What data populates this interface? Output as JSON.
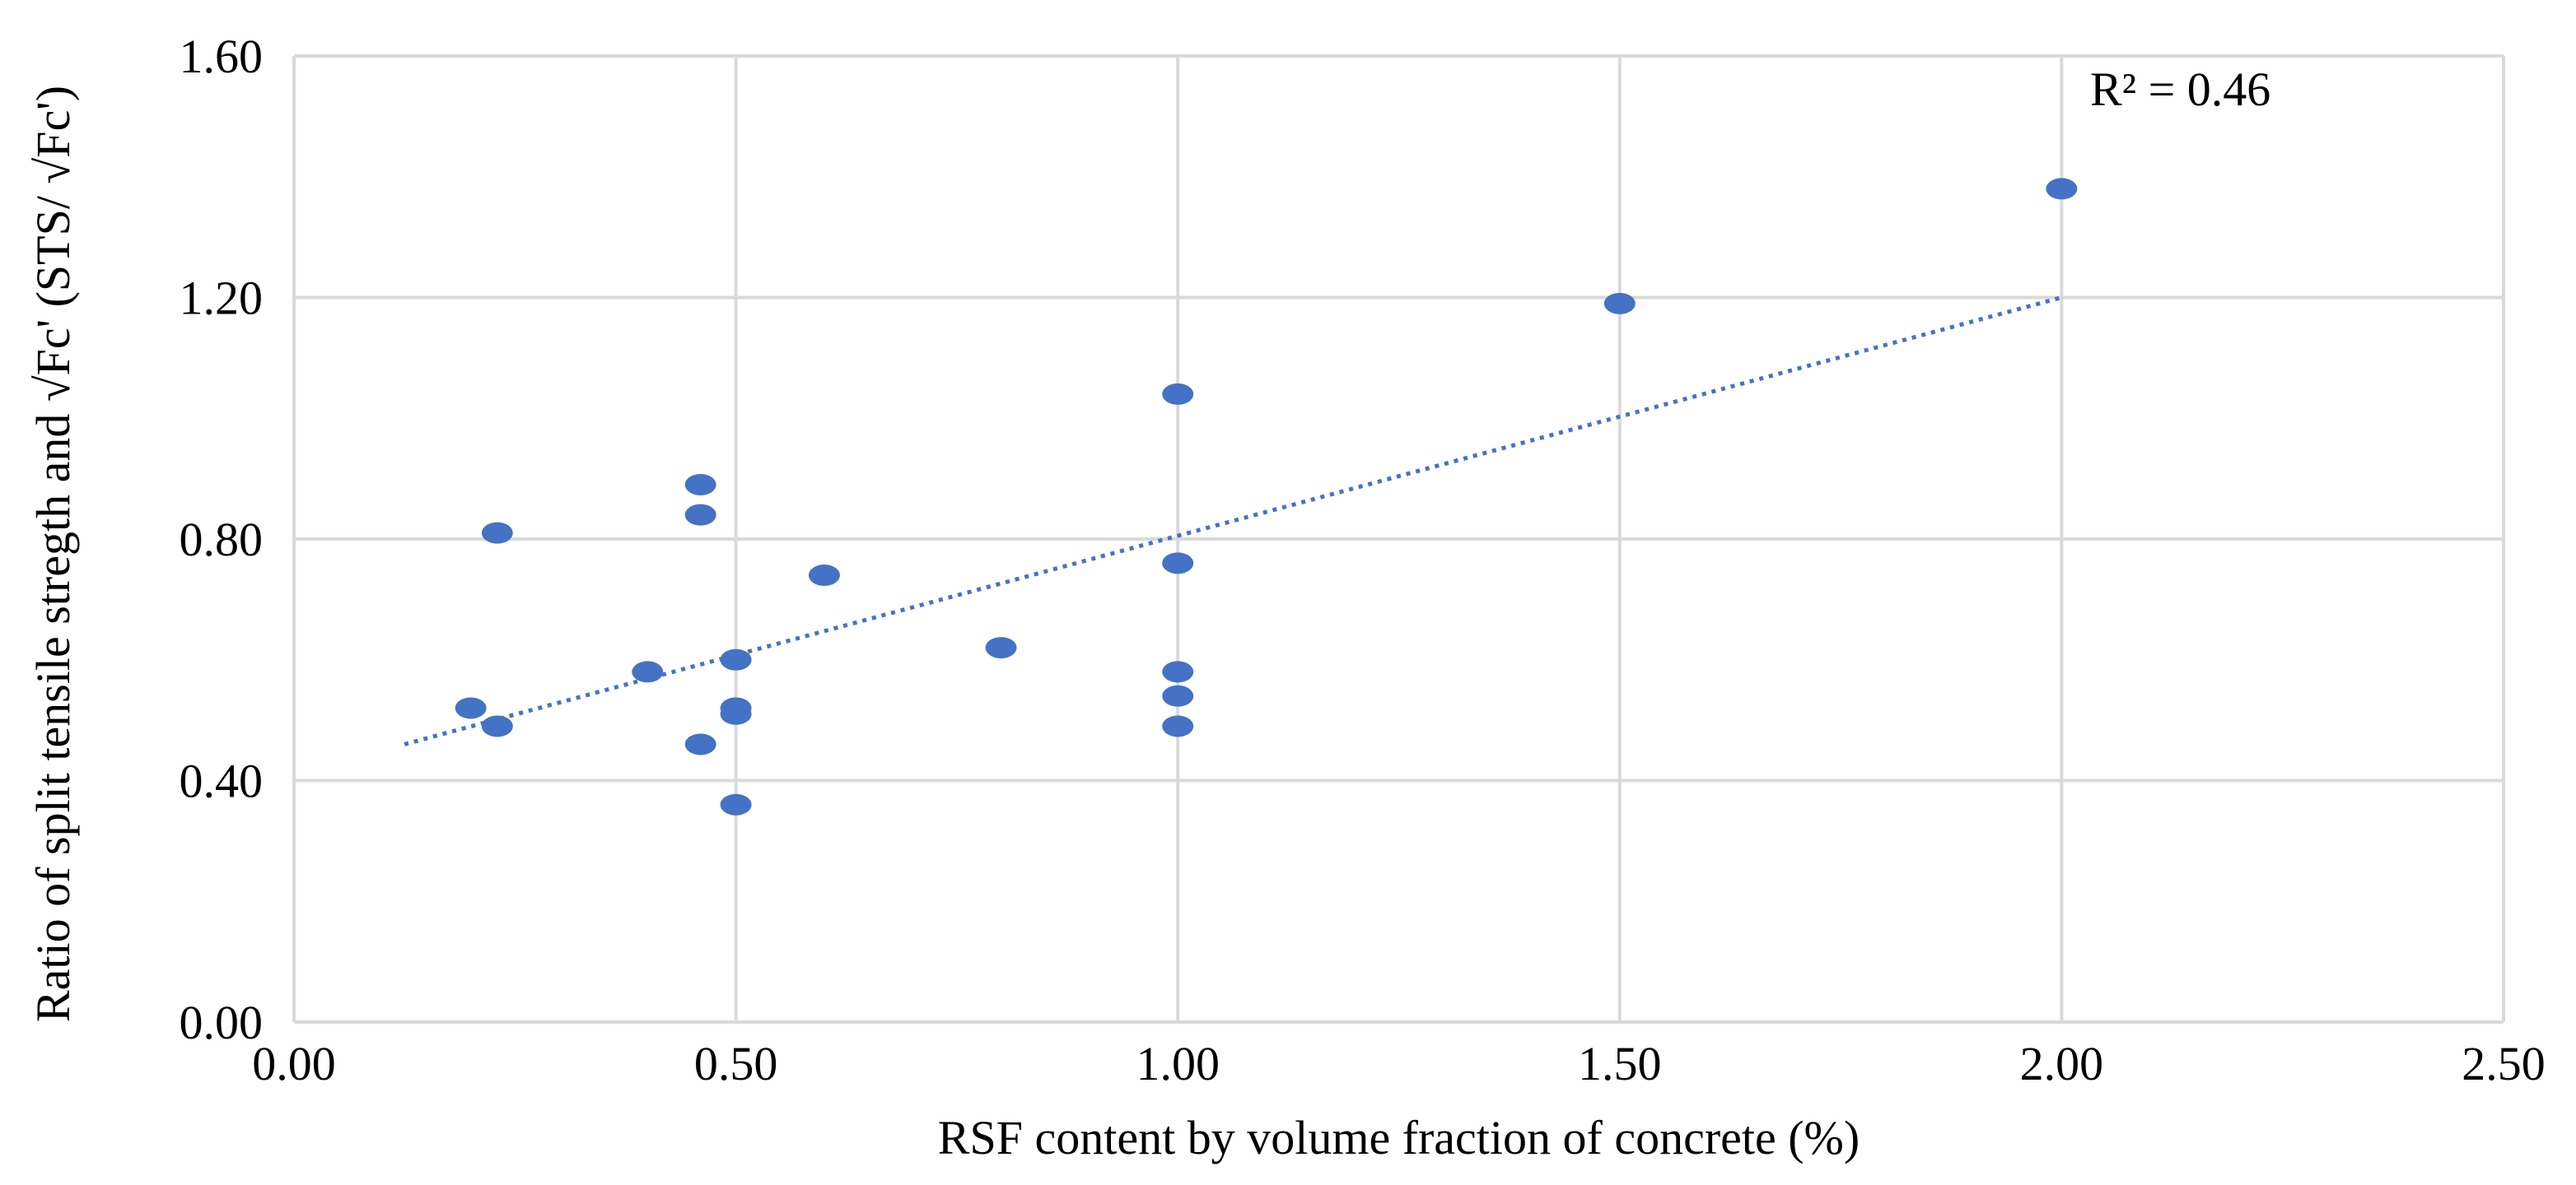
{
  "chart_data": {
    "type": "scatter",
    "xlabel": "RSF content by volume fraction of concrete (%)",
    "ylabel": "Ratio of split tensile stregth and √Fc' (STS/ √Fc')",
    "xlim": [
      0.0,
      2.5
    ],
    "ylim": [
      0.0,
      1.6
    ],
    "x_ticks": [
      "0.00",
      "0.50",
      "1.00",
      "1.50",
      "2.00",
      "2.50"
    ],
    "y_ticks": [
      "0.00",
      "0.40",
      "0.80",
      "1.20",
      "1.60"
    ],
    "grid": true,
    "legend": "none",
    "marker_color": "#4472C4",
    "trendline_color": "#4472C4",
    "points": [
      {
        "x": 0.2,
        "y": 0.52
      },
      {
        "x": 0.23,
        "y": 0.81
      },
      {
        "x": 0.23,
        "y": 0.49
      },
      {
        "x": 0.4,
        "y": 0.58
      },
      {
        "x": 0.46,
        "y": 0.89
      },
      {
        "x": 0.46,
        "y": 0.84
      },
      {
        "x": 0.46,
        "y": 0.46
      },
      {
        "x": 0.5,
        "y": 0.6
      },
      {
        "x": 0.5,
        "y": 0.52
      },
      {
        "x": 0.5,
        "y": 0.51
      },
      {
        "x": 0.5,
        "y": 0.36
      },
      {
        "x": 0.6,
        "y": 0.74
      },
      {
        "x": 0.8,
        "y": 0.62
      },
      {
        "x": 1.0,
        "y": 1.04
      },
      {
        "x": 1.0,
        "y": 0.76
      },
      {
        "x": 1.0,
        "y": 0.58
      },
      {
        "x": 1.0,
        "y": 0.54
      },
      {
        "x": 1.0,
        "y": 0.49
      },
      {
        "x": 1.5,
        "y": 1.19
      },
      {
        "x": 2.0,
        "y": 1.38
      }
    ],
    "trendline": {
      "type": "linear",
      "x": [
        0.125,
        2.0
      ],
      "y": [
        0.46,
        1.2
      ]
    },
    "annotation": "R² = 0.46"
  }
}
